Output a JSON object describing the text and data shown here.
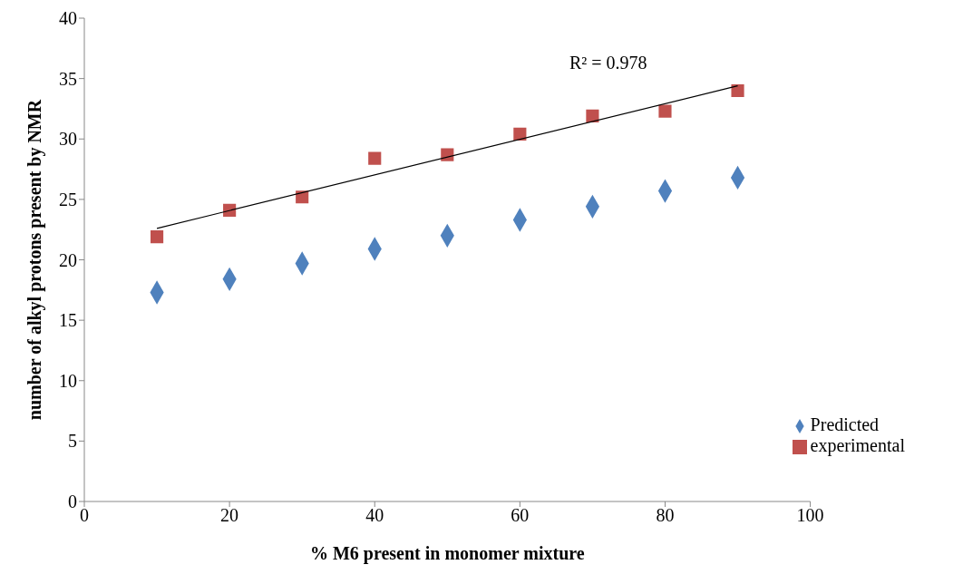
{
  "chart_data": {
    "type": "scatter",
    "xlabel": "% M6 present in monomer mixture",
    "ylabel": "number of alkyl protons present by NMR",
    "x": [
      10,
      20,
      30,
      40,
      50,
      60,
      70,
      80,
      90
    ],
    "series": [
      {
        "name": "Predicted",
        "color": "#4f81bd",
        "marker": "diamond",
        "values": [
          17.3,
          18.4,
          19.7,
          20.9,
          22.0,
          23.3,
          24.4,
          25.7,
          26.8
        ]
      },
      {
        "name": "experimental",
        "color": "#c0504d",
        "marker": "square",
        "values": [
          21.9,
          24.1,
          25.2,
          28.4,
          28.7,
          30.4,
          31.9,
          32.3,
          34.0
        ]
      },
      {
        "type": "line",
        "color": "#000000",
        "x": [
          10,
          90
        ],
        "values": [
          22.6,
          34.4
        ]
      }
    ],
    "annotations": [
      "R² = 0.978"
    ],
    "xlim": [
      0,
      100
    ],
    "xticks": [
      0,
      20,
      40,
      60,
      80,
      100
    ],
    "ylim": [
      0,
      40
    ],
    "yticks": [
      0,
      5,
      10,
      15,
      20,
      25,
      30,
      35,
      40
    ],
    "grid": false,
    "legend": "bottom right"
  }
}
